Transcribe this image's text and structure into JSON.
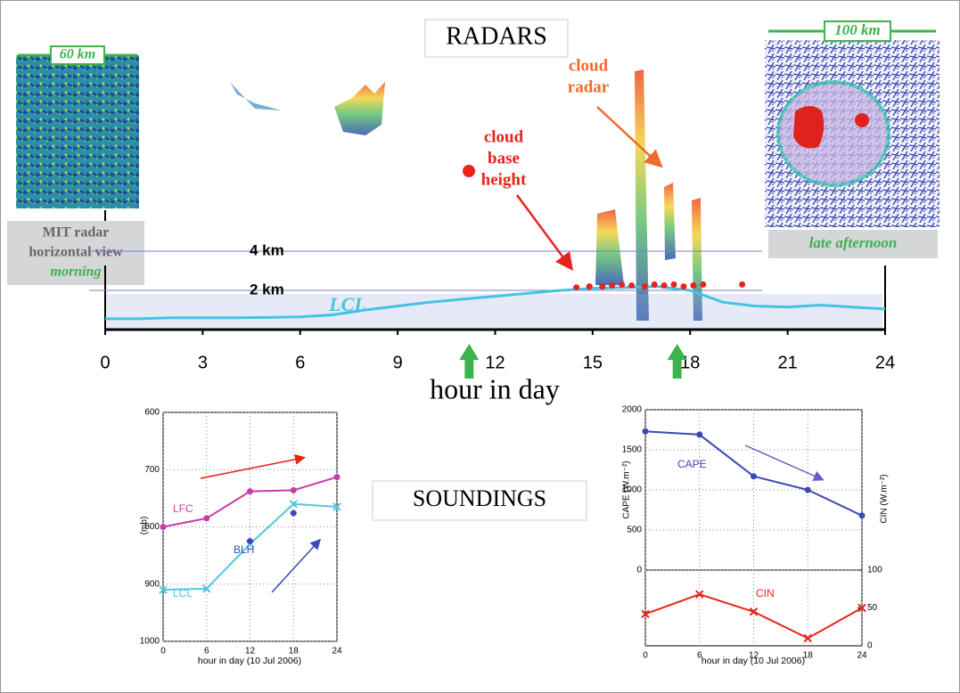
{
  "header": {
    "radars": "RADARS",
    "soundings": "SOUNDINGS"
  },
  "insets": [
    {
      "scale": "60 km",
      "caption": [
        "MIT radar",
        "horizontal view"
      ],
      "time": "morning"
    },
    {
      "scale": "100 km",
      "time": "late afternoon"
    }
  ],
  "chart_data": [
    {
      "type": "time-height",
      "xlabel": "hour in day",
      "xlim": [
        0,
        24
      ],
      "xticks": [
        0,
        3,
        6,
        9,
        12,
        15,
        18,
        21,
        24
      ],
      "ylim": [
        0,
        4.5
      ],
      "yticks": [
        {
          "value": 2,
          "label": "2 km"
        },
        {
          "value": 4,
          "label": "4 km"
        }
      ],
      "series": [
        {
          "name": "LCL",
          "color": "#45c3e3",
          "x": [
            0,
            1,
            2,
            3,
            4,
            5,
            6,
            7,
            8,
            9,
            10,
            11,
            12,
            13,
            14,
            15,
            16,
            17,
            18,
            19,
            20,
            21,
            22,
            23,
            24
          ],
          "values": [
            0.55,
            0.55,
            0.6,
            0.6,
            0.6,
            0.62,
            0.65,
            0.75,
            1.0,
            1.2,
            1.4,
            1.55,
            1.7,
            1.85,
            2.0,
            2.1,
            2.15,
            2.2,
            2.0,
            1.4,
            1.2,
            1.15,
            1.25,
            1.15,
            1.05
          ]
        },
        {
          "color": "#e8231c",
          "x": [
            14.5,
            14.9,
            15.3,
            15.6,
            15.9,
            16.2,
            16.6,
            16.9,
            17.2,
            17.5,
            17.8,
            18.1,
            18.4,
            19.6
          ],
          "values": [
            2.15,
            2.2,
            2.2,
            2.25,
            2.3,
            2.25,
            2.2,
            2.3,
            2.25,
            2.3,
            2.2,
            2.25,
            2.3,
            2.3
          ]
        }
      ],
      "annotations": [
        {
          "lines": [
            "cloud",
            "radar"
          ],
          "color": "#f06a2a"
        },
        {
          "lines": [
            "cloud",
            "base",
            "height"
          ],
          "color": "#e8231c"
        }
      ],
      "sounding_times": [
        11.2,
        17.6
      ],
      "arrow_color": "#3cb44b"
    },
    {
      "type": "line",
      "xlabel": "hour in day (10 Jul 2006)",
      "ylabel": "(mb)",
      "xlim": [
        0,
        24
      ],
      "xticks": [
        0,
        6,
        12,
        18,
        24
      ],
      "ylim": [
        1000,
        600
      ],
      "yticks": [
        600,
        700,
        800,
        900,
        1000
      ],
      "grid": true,
      "series": [
        {
          "name": "LFC",
          "color": "#c93aa8",
          "marker": "circle",
          "x": [
            0,
            6,
            12,
            18,
            24
          ],
          "values": [
            800,
            785,
            738,
            736,
            713
          ]
        },
        {
          "name": "LCL",
          "color": "#4cc8e0",
          "marker": "x",
          "x": [
            0,
            6,
            12,
            18,
            24
          ],
          "values": [
            910,
            908,
            830,
            760,
            765
          ]
        },
        {
          "name": "BLH",
          "color": "#3b48b8",
          "marker": "circle",
          "points_only": true,
          "x": [
            12,
            18
          ],
          "values": [
            825,
            776
          ]
        }
      ]
    },
    {
      "type": "line",
      "xlabel": "hour in day (10 Jul 2006)",
      "ylabel": "CAPE (W.m⁻²)",
      "y2label": "CIN (W.m⁻²)",
      "xlim": [
        0,
        24
      ],
      "xticks": [
        0,
        6,
        12,
        18,
        24
      ],
      "ylim": [
        0,
        2000
      ],
      "yticks": [
        0,
        500,
        1000,
        1500,
        2000
      ],
      "y2lim": [
        0,
        100
      ],
      "y2ticks": [
        0,
        50,
        100
      ],
      "grid": true,
      "series": [
        {
          "name": "CAPE",
          "color": "#3b48b8",
          "marker": "circle",
          "x": [
            0,
            6,
            12,
            18,
            24
          ],
          "values": [
            1730,
            1690,
            1170,
            1000,
            680
          ]
        },
        {
          "name": "CIN",
          "color": "#e8231c",
          "marker": "x",
          "axis": "y2",
          "x": [
            0,
            6,
            12,
            18,
            24
          ],
          "values": [
            42,
            68,
            45,
            10,
            50
          ]
        }
      ]
    }
  ]
}
